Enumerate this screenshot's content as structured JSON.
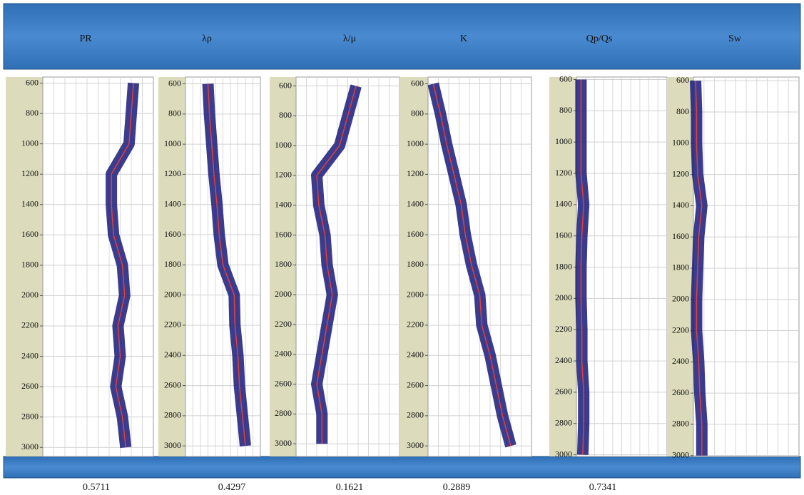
{
  "chart_data": [
    {
      "type": "line",
      "title": "PR",
      "depth": [
        600,
        800,
        1000,
        1200,
        1400,
        1600,
        1800,
        2000,
        2200,
        2400,
        2600,
        2800,
        3000
      ],
      "values": [
        0.82,
        0.8,
        0.78,
        0.62,
        0.62,
        0.64,
        0.72,
        0.74,
        0.68,
        0.7,
        0.66,
        0.72,
        0.75
      ],
      "xlim": [
        0,
        1
      ],
      "ylim": [
        560,
        3060
      ],
      "yticks": [
        600,
        800,
        1000,
        1200,
        1400,
        1600,
        1800,
        2000,
        2200,
        2400,
        2600,
        2800,
        3000
      ],
      "value": 0.5711
    },
    {
      "type": "line",
      "title": "λρ",
      "depth": [
        600,
        800,
        1000,
        1200,
        1400,
        1600,
        1800,
        2000,
        2200,
        2400,
        2600,
        2800,
        3000
      ],
      "values": [
        0.3,
        0.32,
        0.35,
        0.38,
        0.42,
        0.45,
        0.5,
        0.65,
        0.66,
        0.7,
        0.72,
        0.76,
        0.8
      ],
      "xlim": [
        0,
        1
      ],
      "ylim": [
        555,
        3070
      ],
      "yticks": [
        600,
        800,
        1000,
        1200,
        1400,
        1600,
        1800,
        2000,
        2200,
        2400,
        2600,
        2800,
        3000
      ],
      "value": 0.4297
    },
    {
      "type": "line",
      "title": "λ/μ",
      "depth": [
        600,
        800,
        1000,
        1200,
        1400,
        1600,
        1800,
        2000,
        2200,
        2400,
        2600,
        2800,
        3000
      ],
      "values": [
        0.58,
        0.5,
        0.42,
        0.2,
        0.22,
        0.28,
        0.3,
        0.35,
        0.3,
        0.25,
        0.2,
        0.25,
        0.25
      ],
      "xlim": [
        0,
        1
      ],
      "ylim": [
        540,
        3085
      ],
      "yticks": [
        600,
        800,
        1000,
        1200,
        1400,
        1600,
        1800,
        2000,
        2200,
        2400,
        2600,
        2800,
        3000
      ],
      "value": 0.1621
    },
    {
      "type": "line",
      "title": "K",
      "depth": [
        600,
        800,
        1000,
        1200,
        1400,
        1600,
        1800,
        2000,
        2200,
        2400,
        2600,
        2800,
        3000
      ],
      "values": [
        0.05,
        0.12,
        0.18,
        0.25,
        0.32,
        0.36,
        0.42,
        0.5,
        0.52,
        0.6,
        0.66,
        0.72,
        0.8
      ],
      "xlim": [
        0,
        1
      ],
      "ylim": [
        555,
        3070
      ],
      "yticks": [
        600,
        800,
        1000,
        1200,
        1400,
        1600,
        1800,
        2000,
        2200,
        2400,
        2600,
        2800,
        3000
      ],
      "value": 0.2889
    },
    {
      "type": "line",
      "title": "Qp/Qs",
      "depth": [
        600,
        800,
        1000,
        1200,
        1400,
        1600,
        1800,
        2000,
        2200,
        2400,
        2600,
        2800,
        3000
      ],
      "values": [
        0.05,
        0.05,
        0.05,
        0.05,
        0.08,
        0.06,
        0.05,
        0.05,
        0.06,
        0.06,
        0.08,
        0.08,
        0.07
      ],
      "xlim": [
        0,
        1
      ],
      "ylim": [
        584,
        3011
      ],
      "yticks": [
        600,
        800,
        1000,
        1200,
        1400,
        1600,
        1800,
        2000,
        2200,
        2400,
        2600,
        2800,
        3000
      ],
      "value": 0.7341
    },
    {
      "type": "line",
      "title": "Sw",
      "depth": [
        600,
        800,
        1000,
        1200,
        1400,
        1600,
        1800,
        2000,
        2200,
        2400,
        2600,
        2800,
        3000
      ],
      "values": [
        0.02,
        0.03,
        0.03,
        0.04,
        0.08,
        0.05,
        0.04,
        0.03,
        0.03,
        0.05,
        0.06,
        0.08,
        0.08
      ],
      "xlim": [
        0,
        1
      ],
      "ylim": [
        576,
        3006
      ],
      "yticks": [
        600,
        800,
        1000,
        1200,
        1400,
        1600,
        1800,
        2000,
        2200,
        2400,
        2600,
        2800,
        3000
      ]
    }
  ]
}
